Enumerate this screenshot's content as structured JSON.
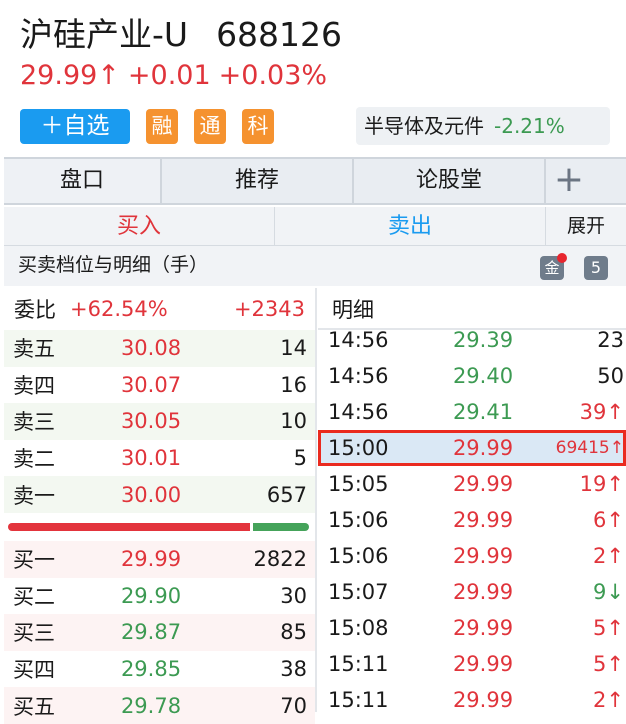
{
  "stock": {
    "name": "沪硅产业-U",
    "code": "688126",
    "price": "29.99↑",
    "change": "+0.01",
    "change_pct": "+0.03%"
  },
  "actions": {
    "add_watch": "＋自选",
    "tags": [
      "融",
      "通",
      "科"
    ]
  },
  "sector": {
    "name": "半导体及元件",
    "change": "-2.21%"
  },
  "tabs": [
    "盘口",
    "推荐",
    "论股堂",
    "+"
  ],
  "trade": {
    "buy": "买入",
    "sell": "卖出",
    "expand": "展开"
  },
  "section": {
    "title": "买卖档位与明细（手）",
    "gold_icon": "金",
    "level_badge": "5"
  },
  "orderbook": {
    "ratio_label": "委比",
    "ratio_pct": "+62.54%",
    "ratio_diff": "+2343",
    "buy_share": 0.8127,
    "asks": [
      {
        "label": "卖五",
        "price": "30.08",
        "qty": "14"
      },
      {
        "label": "卖四",
        "price": "30.07",
        "qty": "16"
      },
      {
        "label": "卖三",
        "price": "30.05",
        "qty": "10"
      },
      {
        "label": "卖二",
        "price": "30.01",
        "qty": "5"
      },
      {
        "label": "卖一",
        "price": "30.00",
        "qty": "657"
      }
    ],
    "bids": [
      {
        "label": "买一",
        "price": "29.99",
        "qty": "2822",
        "color": "red"
      },
      {
        "label": "买二",
        "price": "29.90",
        "qty": "30",
        "color": "green"
      },
      {
        "label": "买三",
        "price": "29.87",
        "qty": "85",
        "color": "green"
      },
      {
        "label": "买四",
        "price": "29.85",
        "qty": "38",
        "color": "green"
      },
      {
        "label": "买五",
        "price": "29.78",
        "qty": "70",
        "color": "green"
      }
    ]
  },
  "detail": {
    "title": "明细",
    "rows": [
      {
        "time": "14:56",
        "price": "29.39",
        "vol": "23",
        "pc": "green",
        "vc": "black"
      },
      {
        "time": "14:56",
        "price": "29.40",
        "vol": "50",
        "pc": "green",
        "vc": "black"
      },
      {
        "time": "14:56",
        "price": "29.41",
        "vol": "39↑",
        "pc": "green",
        "vc": "red"
      },
      {
        "time": "15:00",
        "price": "29.99",
        "vol": "69415↑",
        "pc": "red",
        "vc": "red",
        "highlight": true
      },
      {
        "time": "15:05",
        "price": "29.99",
        "vol": "19↑",
        "pc": "red",
        "vc": "red"
      },
      {
        "time": "15:06",
        "price": "29.99",
        "vol": "6↑",
        "pc": "red",
        "vc": "red"
      },
      {
        "time": "15:06",
        "price": "29.99",
        "vol": "2↑",
        "pc": "red",
        "vc": "red"
      },
      {
        "time": "15:07",
        "price": "29.99",
        "vol": "9↓",
        "pc": "red",
        "vc": "green"
      },
      {
        "time": "15:08",
        "price": "29.99",
        "vol": "5↑",
        "pc": "red",
        "vc": "red"
      },
      {
        "time": "15:11",
        "price": "29.99",
        "vol": "5↑",
        "pc": "red",
        "vc": "red"
      },
      {
        "time": "15:11",
        "price": "29.99",
        "vol": "2↑",
        "pc": "red",
        "vc": "red"
      }
    ]
  },
  "colors": {
    "up": "#e0343b",
    "down": "#3c9a52",
    "accent": "#1a9bf0",
    "tag": "#f5922f"
  }
}
